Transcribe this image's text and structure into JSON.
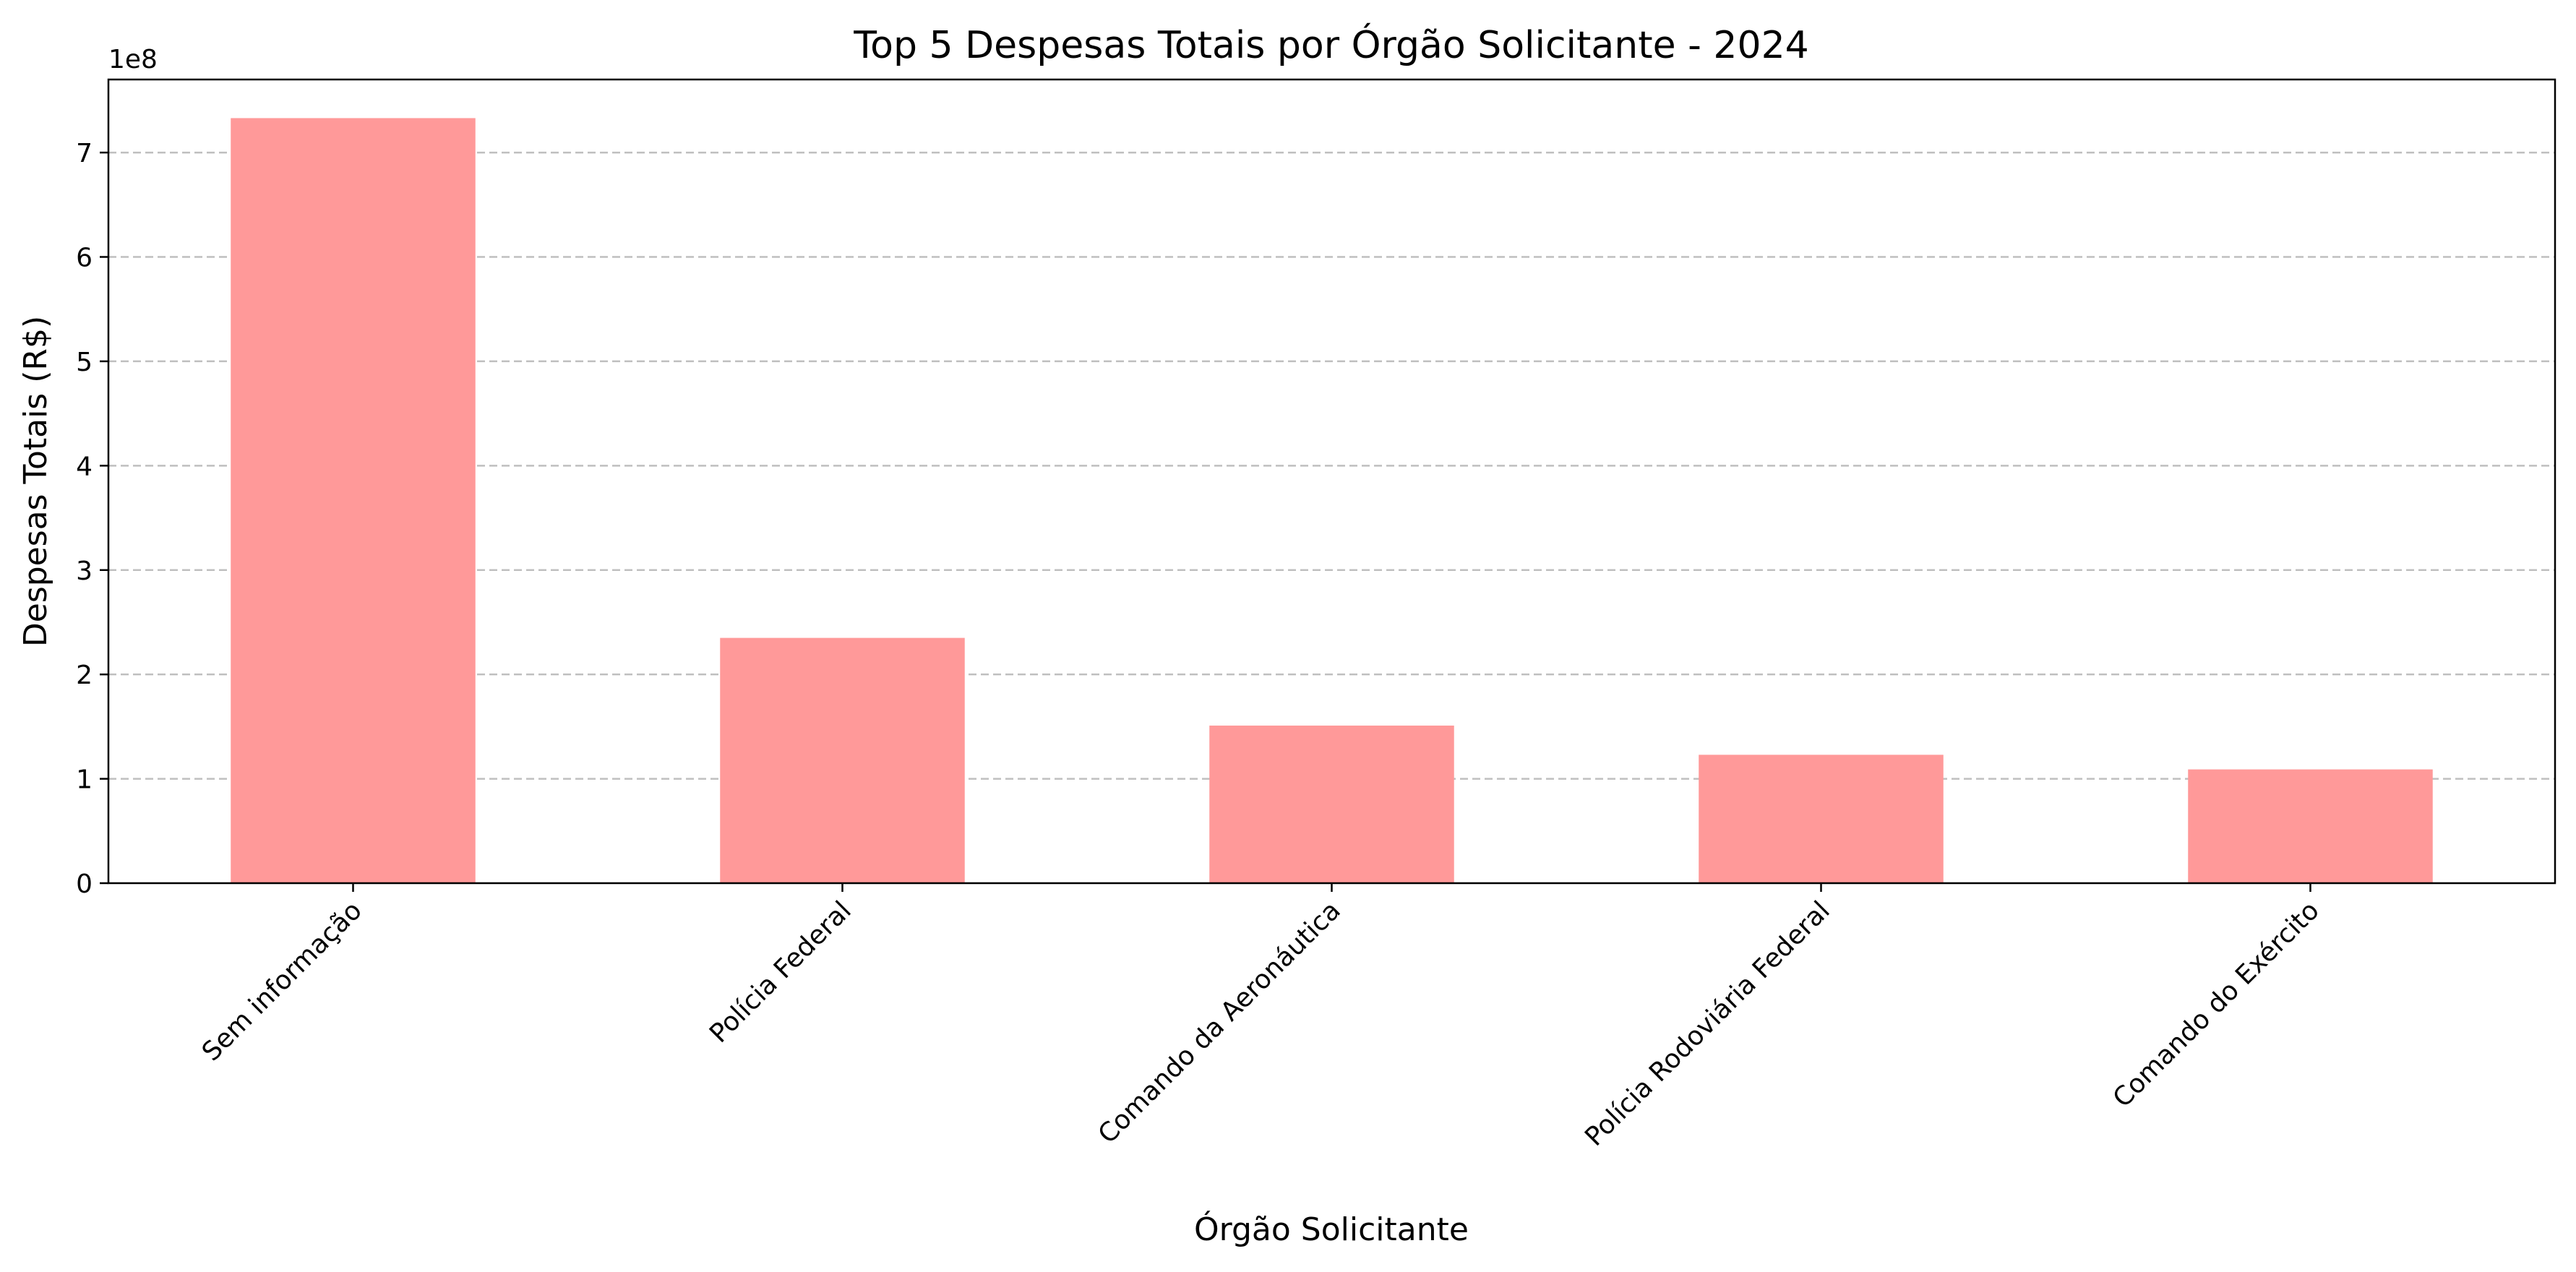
{
  "chart_data": {
    "type": "bar",
    "title": "Top 5 Despesas Totais por Órgão Solicitante - 2024",
    "xlabel": "Órgão Solicitante",
    "ylabel": "Despesas Totais (R$)",
    "y_offset_label": "1e8",
    "categories": [
      "Sem informação",
      "Polícia Federal",
      "Comando da Aeronáutica",
      "Polícia Rodoviária Federal",
      "Comando do Exército"
    ],
    "values": [
      733000000,
      235000000,
      151000000,
      123000000,
      109000000
    ],
    "y_ticks": [
      0,
      1,
      2,
      3,
      4,
      5,
      6,
      7
    ],
    "ylim": [
      0,
      7.7
    ],
    "bar_color": "#ff9999",
    "grid": "y-axis dashed",
    "legend": "none"
  }
}
